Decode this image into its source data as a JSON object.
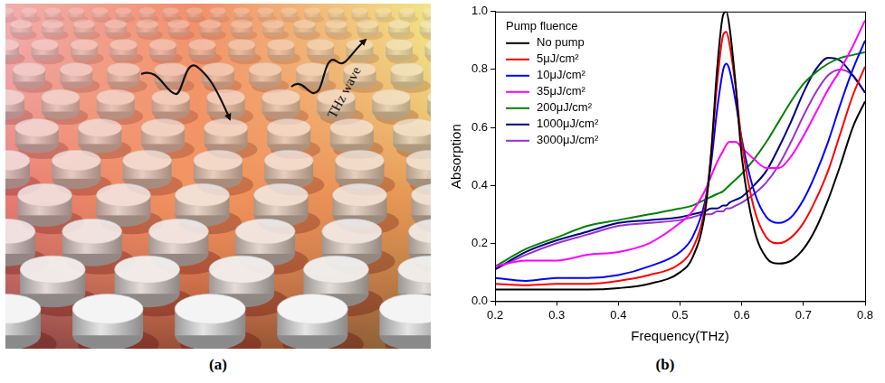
{
  "panels": [
    {
      "label": "(a)",
      "illustration": {
        "text": "THz wave"
      }
    },
    {
      "label": "(b)"
    }
  ],
  "chart_data": {
    "type": "line",
    "x_label": "Frequency(THz)",
    "y_label": "Absorption",
    "legend_title": "Pump fluence",
    "legend": "upper left",
    "grid": false,
    "xlim": [
      0.2,
      0.8
    ],
    "xticks": [
      0.2,
      0.3,
      0.4,
      0.5,
      0.6,
      0.7,
      0.8
    ],
    "ylim": [
      0,
      1
    ],
    "yticks": [
      {
        "value": 0,
        "label": "0.0"
      },
      0.2,
      0.4,
      0.6,
      0.8,
      {
        "value": 1,
        "label": "1.0"
      }
    ],
    "x": [
      0.2,
      0.25,
      0.3,
      0.35,
      0.4,
      0.45,
      0.5,
      0.52,
      0.54,
      0.55,
      0.56,
      0.57,
      0.575,
      0.58,
      0.59,
      0.6,
      0.62,
      0.64,
      0.66,
      0.68,
      0.7,
      0.72,
      0.74,
      0.76,
      0.78,
      0.8
    ],
    "series": [
      {
        "name": "No pump",
        "color": "#000000",
        "values": [
          0.04,
          0.04,
          0.04,
          0.04,
          0.045,
          0.06,
          0.1,
          0.15,
          0.3,
          0.5,
          0.8,
          0.99,
          1.0,
          0.95,
          0.75,
          0.5,
          0.25,
          0.15,
          0.13,
          0.14,
          0.18,
          0.25,
          0.35,
          0.47,
          0.6,
          0.69
        ]
      },
      {
        "name": "5μJ/cm²",
        "color": "#ff0000",
        "values": [
          0.06,
          0.055,
          0.06,
          0.06,
          0.07,
          0.09,
          0.13,
          0.18,
          0.32,
          0.5,
          0.75,
          0.92,
          0.93,
          0.89,
          0.74,
          0.55,
          0.32,
          0.22,
          0.2,
          0.22,
          0.27,
          0.35,
          0.45,
          0.58,
          0.71,
          0.81
        ]
      },
      {
        "name": "10μJ/cm²",
        "color": "#0000ff",
        "values": [
          0.08,
          0.07,
          0.08,
          0.08,
          0.09,
          0.12,
          0.17,
          0.22,
          0.34,
          0.47,
          0.66,
          0.8,
          0.82,
          0.8,
          0.69,
          0.56,
          0.38,
          0.29,
          0.27,
          0.29,
          0.35,
          0.44,
          0.55,
          0.68,
          0.8,
          0.9
        ]
      },
      {
        "name": "35μJ/cm²",
        "color": "#ff00ff",
        "values": [
          0.12,
          0.14,
          0.14,
          0.16,
          0.17,
          0.2,
          0.27,
          0.31,
          0.38,
          0.43,
          0.48,
          0.52,
          0.54,
          0.55,
          0.55,
          0.53,
          0.49,
          0.46,
          0.46,
          0.5,
          0.57,
          0.65,
          0.73,
          0.8,
          0.88,
          0.97
        ]
      },
      {
        "name": "200μJ/cm²",
        "color": "#008000",
        "values": [
          0.12,
          0.18,
          0.22,
          0.26,
          0.28,
          0.3,
          0.32,
          0.33,
          0.35,
          0.36,
          0.37,
          0.38,
          0.39,
          0.4,
          0.42,
          0.44,
          0.49,
          0.55,
          0.62,
          0.69,
          0.75,
          0.79,
          0.82,
          0.84,
          0.85,
          0.86
        ]
      },
      {
        "name": "1000μJ/cm²",
        "color": "#000080",
        "values": [
          0.11,
          0.17,
          0.21,
          0.24,
          0.27,
          0.28,
          0.29,
          0.3,
          0.31,
          0.32,
          0.32,
          0.33,
          0.33,
          0.34,
          0.35,
          0.36,
          0.4,
          0.45,
          0.53,
          0.62,
          0.72,
          0.8,
          0.84,
          0.83,
          0.78,
          0.72
        ]
      },
      {
        "name": "3000μJ/cm²",
        "color": "#9932cc",
        "values": [
          0.11,
          0.16,
          0.2,
          0.23,
          0.26,
          0.27,
          0.28,
          0.29,
          0.3,
          0.3,
          0.31,
          0.31,
          0.32,
          0.32,
          0.33,
          0.34,
          0.37,
          0.41,
          0.47,
          0.55,
          0.64,
          0.72,
          0.78,
          0.8,
          0.78,
          0.72
        ]
      }
    ]
  }
}
